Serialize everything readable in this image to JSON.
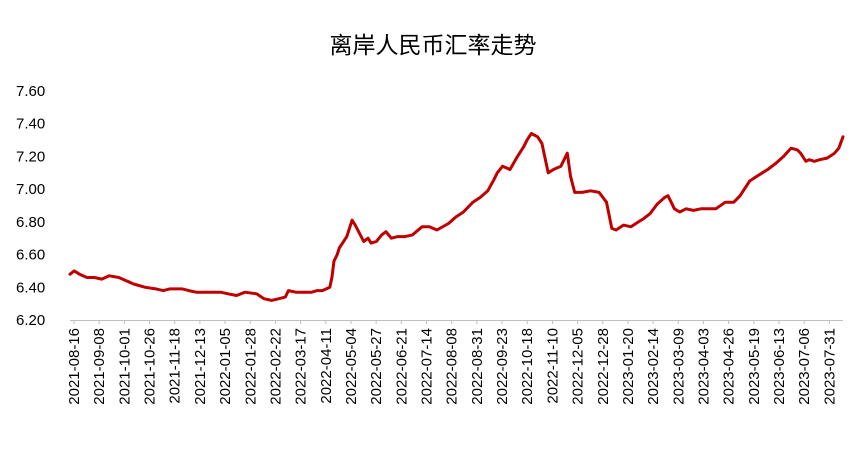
{
  "chart_data": {
    "type": "line",
    "title": "离岸人民币汇率走势",
    "xlabel": "",
    "ylabel": "",
    "ylim": [
      6.2,
      7.6
    ],
    "yticks": [
      "7.60",
      "7.40",
      "7.20",
      "7.00",
      "6.80",
      "6.60",
      "6.40",
      "6.20"
    ],
    "grid": false,
    "legend": "none",
    "line_color": "#C00000",
    "x_tick_labels": [
      "2021-08-16",
      "2021-09-08",
      "2021-10-01",
      "2021-10-26",
      "2021-11-18",
      "2021-12-13",
      "2022-01-05",
      "2022-01-28",
      "2022-02-22",
      "2022-03-17",
      "2022-04-11",
      "2022-05-04",
      "2022-05-27",
      "2022-06-21",
      "2022-07-14",
      "2022-08-08",
      "2022-08-31",
      "2022-09-23",
      "2022-10-18",
      "2022-11-10",
      "2022-12-05",
      "2022-12-28",
      "2023-01-20",
      "2023-02-14",
      "2023-03-09",
      "2023-04-03",
      "2023-04-26",
      "2023-05-19",
      "2023-06-13",
      "2023-07-06",
      "2023-07-31"
    ],
    "series": [
      {
        "x": [
          "2021-08-16",
          "2021-08-20",
          "2021-08-25",
          "2021-09-01",
          "2021-09-08",
          "2021-09-15",
          "2021-09-22",
          "2021-10-01",
          "2021-10-08",
          "2021-10-15",
          "2021-10-26",
          "2021-11-05",
          "2021-11-12",
          "2021-11-18",
          "2021-11-30",
          "2021-12-06",
          "2021-12-13",
          "2021-12-22",
          "2022-01-05",
          "2022-01-12",
          "2022-01-20",
          "2022-01-28",
          "2022-02-08",
          "2022-02-15",
          "2022-02-22",
          "2022-03-01",
          "2022-03-07",
          "2022-03-10",
          "2022-03-17",
          "2022-03-24",
          "2022-04-01",
          "2022-04-06",
          "2022-04-11",
          "2022-04-18",
          "2022-04-20",
          "2022-04-22",
          "2022-04-25",
          "2022-04-27",
          "2022-05-04",
          "2022-05-09",
          "2022-05-12",
          "2022-05-16",
          "2022-05-20",
          "2022-05-24",
          "2022-05-27",
          "2022-06-01",
          "2022-06-06",
          "2022-06-10",
          "2022-06-15",
          "2022-06-21",
          "2022-06-28",
          "2022-07-05",
          "2022-07-14",
          "2022-07-21",
          "2022-07-28",
          "2022-08-08",
          "2022-08-15",
          "2022-08-22",
          "2022-08-31",
          "2022-09-07",
          "2022-09-14",
          "2022-09-20",
          "2022-09-23",
          "2022-09-28",
          "2022-10-05",
          "2022-10-12",
          "2022-10-18",
          "2022-10-21",
          "2022-10-25",
          "2022-10-31",
          "2022-11-04",
          "2022-11-10",
          "2022-11-15",
          "2022-11-22",
          "2022-11-28",
          "2022-12-01",
          "2022-12-05",
          "2022-12-12",
          "2022-12-20",
          "2022-12-28",
          "2023-01-04",
          "2023-01-09",
          "2023-01-13",
          "2023-01-20",
          "2023-01-27",
          "2023-02-03",
          "2023-02-08",
          "2023-02-14",
          "2023-02-21",
          "2023-02-28",
          "2023-03-03",
          "2023-03-09",
          "2023-03-14",
          "2023-03-20",
          "2023-03-27",
          "2023-04-03",
          "2023-04-10",
          "2023-04-17",
          "2023-04-26",
          "2023-05-04",
          "2023-05-10",
          "2023-05-19",
          "2023-05-26",
          "2023-06-05",
          "2023-06-13",
          "2023-06-20",
          "2023-06-27",
          "2023-07-03",
          "2023-07-06",
          "2023-07-11",
          "2023-07-14",
          "2023-07-19",
          "2023-07-24",
          "2023-07-31",
          "2023-08-07",
          "2023-08-11",
          "2023-08-15"
        ],
        "values": [
          6.48,
          6.5,
          6.48,
          6.46,
          6.46,
          6.45,
          6.47,
          6.46,
          6.44,
          6.42,
          6.4,
          6.39,
          6.38,
          6.39,
          6.39,
          6.38,
          6.37,
          6.37,
          6.37,
          6.36,
          6.35,
          6.37,
          6.36,
          6.33,
          6.32,
          6.33,
          6.34,
          6.38,
          6.37,
          6.37,
          6.37,
          6.38,
          6.38,
          6.4,
          6.46,
          6.56,
          6.6,
          6.64,
          6.71,
          6.81,
          6.78,
          6.73,
          6.68,
          6.7,
          6.67,
          6.68,
          6.72,
          6.74,
          6.7,
          6.71,
          6.71,
          6.72,
          6.77,
          6.77,
          6.75,
          6.79,
          6.83,
          6.86,
          6.92,
          6.95,
          6.99,
          7.06,
          7.1,
          7.14,
          7.12,
          7.2,
          7.26,
          7.3,
          7.34,
          7.32,
          7.28,
          7.1,
          7.12,
          7.14,
          7.22,
          7.08,
          6.98,
          6.98,
          6.99,
          6.98,
          6.92,
          6.76,
          6.75,
          6.78,
          6.77,
          6.8,
          6.82,
          6.85,
          6.91,
          6.95,
          6.96,
          6.88,
          6.86,
          6.88,
          6.87,
          6.88,
          6.88,
          6.88,
          6.92,
          6.92,
          6.96,
          7.05,
          7.08,
          7.12,
          7.16,
          7.2,
          7.25,
          7.24,
          7.22,
          7.17,
          7.18,
          7.17,
          7.18,
          7.19,
          7.22,
          7.25,
          7.32
        ]
      }
    ]
  }
}
